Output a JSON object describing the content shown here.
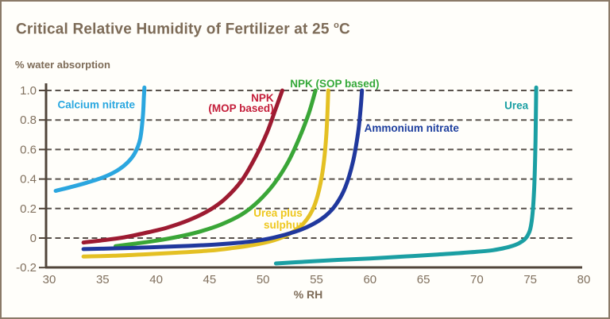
{
  "title": {
    "main": "Critical Relative Humidity of Fertilizer at 25",
    "degree_symbol": "o",
    "unit": "C"
  },
  "chart_data": {
    "type": "line",
    "title": "Critical Relative Humidity of Fertilizer at 25 °C",
    "xlabel": "% RH",
    "ylabel": "% water absorption",
    "xlim": [
      30,
      80
    ],
    "ylim": [
      -0.2,
      1.02
    ],
    "x_ticks": [
      30,
      35,
      40,
      45,
      50,
      55,
      60,
      65,
      70,
      75,
      80
    ],
    "y_ticks": [
      {
        "v": -0.2,
        "label": "-0.2",
        "grid": false
      },
      {
        "v": 0,
        "label": "0",
        "grid": true
      },
      {
        "v": 0.2,
        "label": "0.2",
        "grid": true
      },
      {
        "v": 0.4,
        "label": "0.4",
        "grid": true
      },
      {
        "v": 0.6,
        "label": "0.6",
        "grid": true
      },
      {
        "v": 0.8,
        "label": "0.8",
        "grid": true
      },
      {
        "v": 1.0,
        "label": "1.0",
        "grid": true
      }
    ],
    "grid": {
      "horizontal": "dashed",
      "vertical": "none"
    },
    "colors": {
      "axis": "#51453a",
      "gridline": "#59524c",
      "tick_label": "#80705e",
      "title_text": "#7d6b57",
      "border": "#8b7a68"
    },
    "series": [
      {
        "name": "Calcium nitrate",
        "color": "#2ba6df",
        "label_color": "#29a7e0",
        "labels": [
          {
            "text": "Calcium nitrate",
            "x": 34.4,
            "y": 0.88,
            "anchor": "middle"
          }
        ],
        "points": [
          [
            30.6,
            0.32
          ],
          [
            32,
            0.345
          ],
          [
            33.5,
            0.375
          ],
          [
            35,
            0.41
          ],
          [
            36.3,
            0.455
          ],
          [
            37.3,
            0.51
          ],
          [
            38,
            0.575
          ],
          [
            38.5,
            0.67
          ],
          [
            38.75,
            0.82
          ],
          [
            38.85,
            0.95
          ],
          [
            38.9,
            1.02
          ]
        ]
      },
      {
        "name": "NPK (MOP based)",
        "color": "#9d1b31",
        "label_color": "#c41e3a",
        "labels": [
          {
            "text": "NPK",
            "x": 51.0,
            "y": 0.925,
            "anchor": "end"
          },
          {
            "text": "(MOP based)",
            "x": 51.0,
            "y": 0.855,
            "anchor": "end"
          }
        ],
        "points": [
          [
            33.2,
            -0.03
          ],
          [
            35,
            -0.015
          ],
          [
            37,
            0.005
          ],
          [
            39,
            0.035
          ],
          [
            41,
            0.07
          ],
          [
            43,
            0.12
          ],
          [
            45,
            0.19
          ],
          [
            46.5,
            0.27
          ],
          [
            48,
            0.39
          ],
          [
            49.3,
            0.55
          ],
          [
            50.4,
            0.72
          ],
          [
            51.2,
            0.88
          ],
          [
            51.8,
            1.0
          ]
        ]
      },
      {
        "name": "NPK (SOP based)",
        "color": "#3aa637",
        "label_color": "#35a93a",
        "labels": [
          {
            "text": "NPK (SOP based)",
            "x": 56.7,
            "y": 1.021,
            "anchor": "middle"
          }
        ],
        "points": [
          [
            36.2,
            -0.055
          ],
          [
            38,
            -0.038
          ],
          [
            40,
            -0.018
          ],
          [
            42,
            0.008
          ],
          [
            44,
            0.042
          ],
          [
            46,
            0.09
          ],
          [
            48,
            0.16
          ],
          [
            49.5,
            0.245
          ],
          [
            51,
            0.365
          ],
          [
            52.3,
            0.51
          ],
          [
            53.4,
            0.68
          ],
          [
            54.3,
            0.85
          ],
          [
            54.9,
            1.0
          ]
        ]
      },
      {
        "name": "Urea plus sulphur",
        "color": "#e4c023",
        "label_color": "#eec71e",
        "labels": [
          {
            "text": "Urea plus",
            "x": 51.4,
            "y": 0.145,
            "anchor": "middle"
          },
          {
            "text": "sulphur",
            "x": 51.9,
            "y": 0.065,
            "anchor": "middle"
          }
        ],
        "points": [
          [
            33.2,
            -0.125
          ],
          [
            36,
            -0.12
          ],
          [
            39,
            -0.11
          ],
          [
            42,
            -0.099
          ],
          [
            45,
            -0.085
          ],
          [
            47,
            -0.069
          ],
          [
            49,
            -0.048
          ],
          [
            51,
            -0.015
          ],
          [
            52.5,
            0.03
          ],
          [
            53.8,
            0.1
          ],
          [
            54.8,
            0.22
          ],
          [
            55.5,
            0.42
          ],
          [
            55.9,
            0.68
          ],
          [
            56.1,
            1.0
          ]
        ]
      },
      {
        "name": "Ammonium nitrate",
        "color": "#20389d",
        "label_color": "#1e3f9e",
        "labels": [
          {
            "text": "Ammonium nitrate",
            "x": 63.9,
            "y": 0.72,
            "anchor": "middle"
          }
        ],
        "points": [
          [
            33.2,
            -0.075
          ],
          [
            36,
            -0.07
          ],
          [
            39,
            -0.064
          ],
          [
            42,
            -0.056
          ],
          [
            45,
            -0.046
          ],
          [
            47,
            -0.036
          ],
          [
            49,
            -0.022
          ],
          [
            51,
            0.003
          ],
          [
            53,
            0.043
          ],
          [
            54.5,
            0.088
          ],
          [
            55.8,
            0.148
          ],
          [
            56.8,
            0.225
          ],
          [
            57.7,
            0.345
          ],
          [
            58.4,
            0.515
          ],
          [
            58.9,
            0.72
          ],
          [
            59.15,
            0.9
          ],
          [
            59.25,
            1.0
          ]
        ]
      },
      {
        "name": "Urea",
        "color": "#1b9fa3",
        "label_color": "#1a9fa3",
        "labels": [
          {
            "text": "Urea",
            "x": 73.7,
            "y": 0.873,
            "anchor": "middle"
          }
        ],
        "points": [
          [
            51.2,
            -0.172
          ],
          [
            54,
            -0.16
          ],
          [
            57,
            -0.148
          ],
          [
            60,
            -0.138
          ],
          [
            63,
            -0.126
          ],
          [
            66,
            -0.113
          ],
          [
            68,
            -0.104
          ],
          [
            70,
            -0.093
          ],
          [
            71.5,
            -0.082
          ],
          [
            73,
            -0.06
          ],
          [
            74,
            -0.033
          ],
          [
            74.7,
            0.012
          ],
          [
            75.1,
            0.1
          ],
          [
            75.35,
            0.32
          ],
          [
            75.48,
            0.65
          ],
          [
            75.55,
            1.02
          ]
        ]
      }
    ]
  }
}
